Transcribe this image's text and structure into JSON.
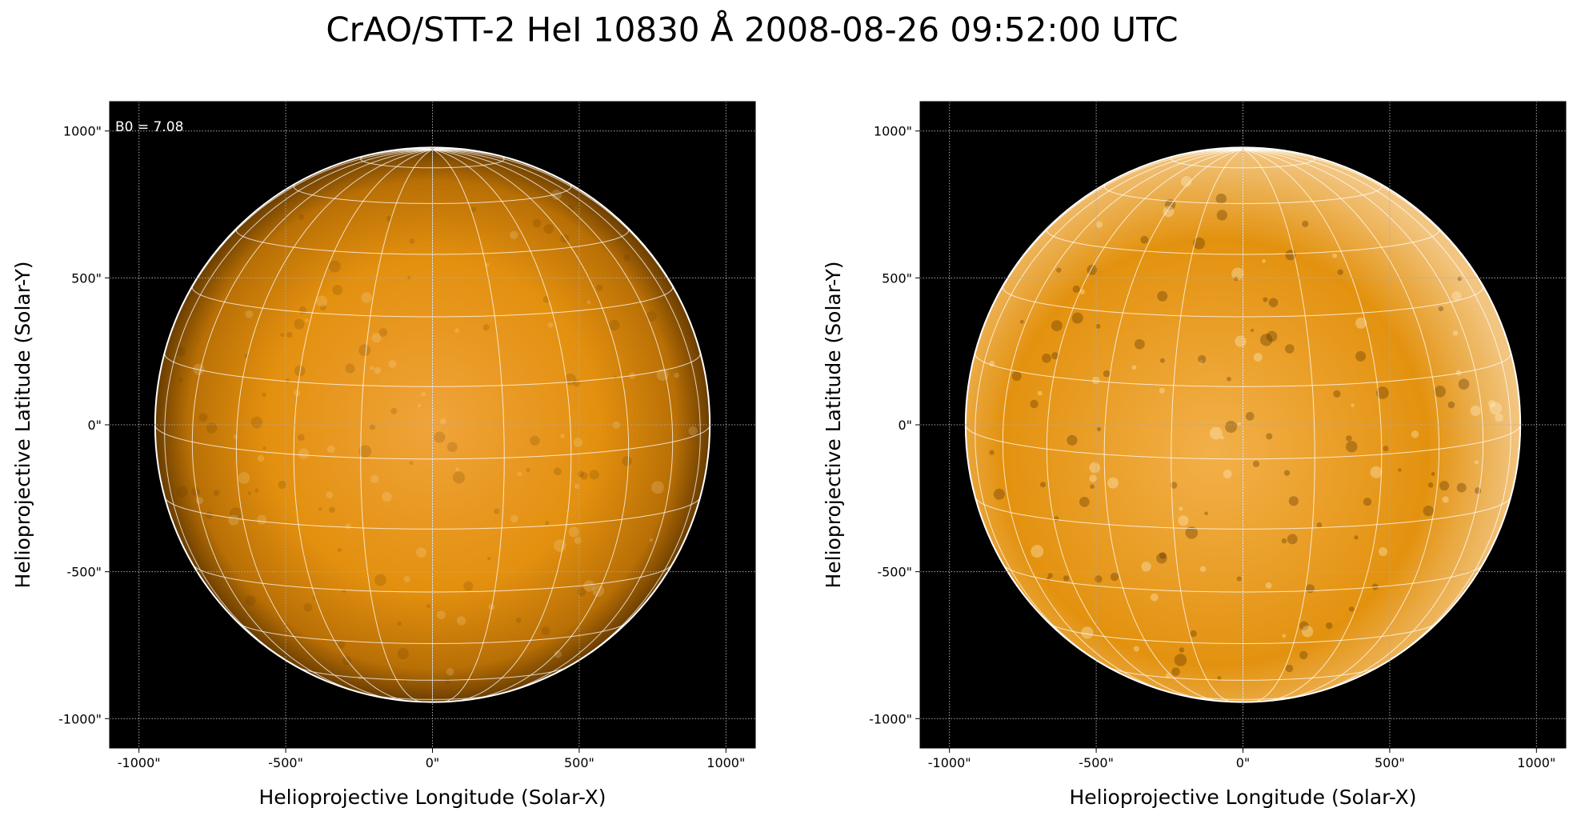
{
  "title": "CrAO/STT-2 HeI 10830 Å 2008-08-26 09:52:00 UTC",
  "chart_data": [
    {
      "type": "image",
      "xlabel": "Helioprojective Longitude (Solar-X)",
      "ylabel": "Helioprojective Latitude (Solar-Y)",
      "xlim": [
        -1100,
        1100
      ],
      "ylim": [
        -1100,
        1100
      ],
      "xticks": [
        {
          "value": -1000,
          "label": "-1000\""
        },
        {
          "value": -500,
          "label": "-500\""
        },
        {
          "value": 0,
          "label": "0\""
        },
        {
          "value": 500,
          "label": "500\""
        },
        {
          "value": 1000,
          "label": "1000\""
        }
      ],
      "yticks": [
        {
          "value": -1000,
          "label": "-1000\""
        },
        {
          "value": -500,
          "label": "-500\""
        },
        {
          "value": 0,
          "label": "0\""
        },
        {
          "value": 500,
          "label": "500\""
        },
        {
          "value": 1000,
          "label": "1000\""
        }
      ],
      "grid": true,
      "rsun": 945,
      "color": "#e08c0c",
      "annotation": {
        "value": 7.08,
        "label": "B0 = 7.08"
      }
    },
    {
      "type": "image",
      "xlabel": "Helioprojective Longitude (Solar-X)",
      "ylabel": "Helioprojective Latitude (Solar-Y)",
      "xlim": [
        -1100,
        1100
      ],
      "ylim": [
        -1100,
        1100
      ],
      "xticks": [
        {
          "value": -1000,
          "label": "-1000\""
        },
        {
          "value": -500,
          "label": "-500\""
        },
        {
          "value": 0,
          "label": "0\""
        },
        {
          "value": 500,
          "label": "500\""
        },
        {
          "value": 1000,
          "label": "1000\""
        }
      ],
      "yticks": [
        {
          "value": -1000,
          "label": "-1000\""
        },
        {
          "value": -500,
          "label": "-500\""
        },
        {
          "value": 0,
          "label": "0\""
        },
        {
          "value": 500,
          "label": "500\""
        },
        {
          "value": 1000,
          "label": "1000\""
        }
      ],
      "grid": true,
      "rsun": 945,
      "color": "#e8960f"
    }
  ]
}
